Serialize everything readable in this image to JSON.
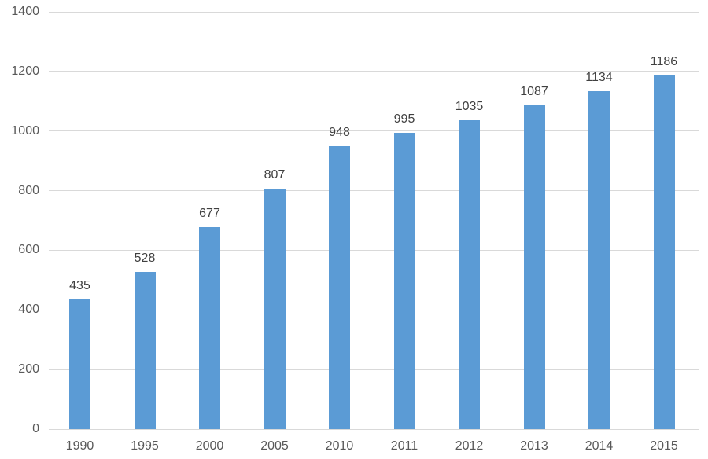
{
  "chart_data": {
    "type": "bar",
    "categories": [
      "1990",
      "1995",
      "2000",
      "2005",
      "2010",
      "2011",
      "2012",
      "2013",
      "2014",
      "2015"
    ],
    "values": [
      435,
      528,
      677,
      807,
      948,
      995,
      1035,
      1087,
      1134,
      1186
    ],
    "title": "",
    "xlabel": "",
    "ylabel": "",
    "ylim": [
      0,
      1400
    ],
    "ytick_step": 200,
    "ytick_labels": [
      "0",
      "200",
      "400",
      "600",
      "800",
      "1000",
      "1200",
      "1400"
    ],
    "grid": true,
    "legend_position": "none",
    "data_labels": true,
    "colors": {
      "bar": "#5b9bd5",
      "gridline": "#d9d9d9",
      "axis_tick_label": "#595959",
      "data_label": "#404040",
      "background": "#ffffff"
    }
  }
}
